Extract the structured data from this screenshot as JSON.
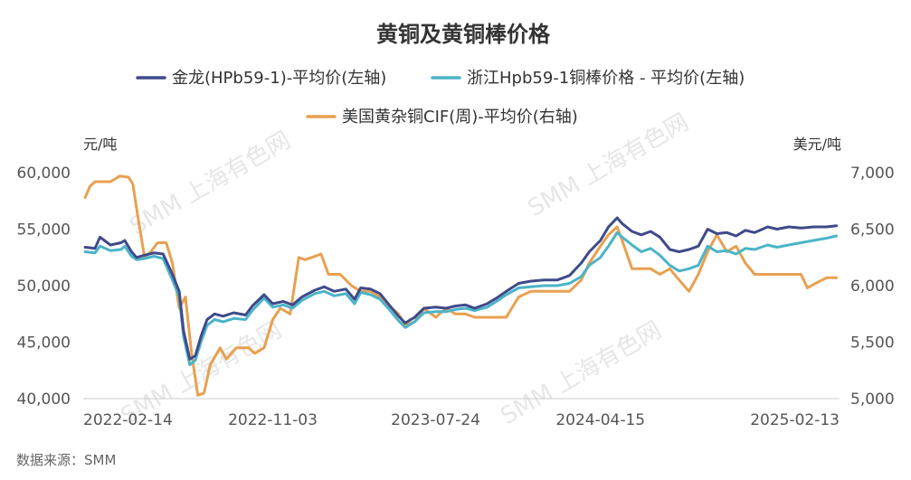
{
  "chart_data": {
    "type": "line",
    "title": "黄铜及黄铜棒价格",
    "left_unit": "元/吨",
    "right_unit": "美元/吨",
    "source": "数据来源：SMM",
    "watermark": "SMM 上海有色网",
    "x_ticks": [
      "2022-02-14",
      "2022-11-03",
      "2023-07-24",
      "2024-04-15",
      "2025-02-13"
    ],
    "x_range": [
      "2022-01-01",
      "2025-05-06"
    ],
    "y_left": {
      "range": [
        40000,
        60000
      ],
      "ticks": [
        "40,000",
        "45,000",
        "50,000",
        "55,000",
        "60,000"
      ]
    },
    "y_right": {
      "range": [
        5000,
        7000
      ],
      "ticks": [
        "5,000",
        "5,500",
        "6,000",
        "6,500",
        "7,000"
      ]
    },
    "series": [
      {
        "name": "金龙(HPb59-1)-平均价(左轴)",
        "axis": "left",
        "color": "#3f4a8a",
        "points": [
          [
            "2022-01-04",
            53400
          ],
          [
            "2022-01-20",
            53300
          ],
          [
            "2022-01-28",
            54300
          ],
          [
            "2022-02-14",
            53600
          ],
          [
            "2022-03-03",
            53800
          ],
          [
            "2022-03-09",
            54000
          ],
          [
            "2022-03-20",
            53000
          ],
          [
            "2022-03-28",
            52500
          ],
          [
            "2022-04-10",
            52700
          ],
          [
            "2022-04-25",
            52900
          ],
          [
            "2022-05-10",
            52800
          ],
          [
            "2022-05-25",
            51000
          ],
          [
            "2022-06-05",
            49500
          ],
          [
            "2022-06-12",
            46000
          ],
          [
            "2022-06-22",
            43500
          ],
          [
            "2022-07-01",
            43800
          ],
          [
            "2022-07-10",
            45500
          ],
          [
            "2022-07-20",
            47000
          ],
          [
            "2022-08-01",
            47500
          ],
          [
            "2022-08-15",
            47300
          ],
          [
            "2022-09-01",
            47600
          ],
          [
            "2022-09-20",
            47400
          ],
          [
            "2022-10-01",
            48200
          ],
          [
            "2022-10-20",
            49200
          ],
          [
            "2022-11-03",
            48400
          ],
          [
            "2022-11-20",
            48600
          ],
          [
            "2022-12-05",
            48300
          ],
          [
            "2022-12-20",
            49000
          ],
          [
            "2023-01-10",
            49600
          ],
          [
            "2023-01-25",
            49900
          ],
          [
            "2023-02-10",
            49500
          ],
          [
            "2023-03-01",
            49700
          ],
          [
            "2023-03-15",
            48800
          ],
          [
            "2023-03-25",
            49800
          ],
          [
            "2023-04-10",
            49700
          ],
          [
            "2023-04-25",
            49300
          ],
          [
            "2023-05-10",
            48300
          ],
          [
            "2023-05-25",
            47300
          ],
          [
            "2023-06-05",
            46700
          ],
          [
            "2023-06-20",
            47200
          ],
          [
            "2023-07-05",
            48000
          ],
          [
            "2023-07-24",
            48100
          ],
          [
            "2023-08-10",
            48000
          ],
          [
            "2023-08-25",
            48200
          ],
          [
            "2023-09-10",
            48300
          ],
          [
            "2023-09-25",
            48000
          ],
          [
            "2023-10-15",
            48400
          ],
          [
            "2023-10-30",
            48900
          ],
          [
            "2023-11-15",
            49500
          ],
          [
            "2023-12-05",
            50200
          ],
          [
            "2023-12-25",
            50400
          ],
          [
            "2024-01-15",
            50500
          ],
          [
            "2024-02-05",
            50500
          ],
          [
            "2024-02-25",
            50900
          ],
          [
            "2024-03-15",
            52000
          ],
          [
            "2024-03-28",
            53000
          ],
          [
            "2024-04-15",
            54000
          ],
          [
            "2024-04-28",
            55200
          ],
          [
            "2024-05-12",
            56000
          ],
          [
            "2024-05-20",
            55500
          ],
          [
            "2024-06-05",
            54800
          ],
          [
            "2024-06-20",
            54500
          ],
          [
            "2024-07-05",
            54800
          ],
          [
            "2024-07-20",
            54300
          ],
          [
            "2024-08-05",
            53200
          ],
          [
            "2024-08-20",
            53000
          ],
          [
            "2024-09-05",
            53200
          ],
          [
            "2024-09-20",
            53500
          ],
          [
            "2024-10-05",
            55000
          ],
          [
            "2024-10-20",
            54600
          ],
          [
            "2024-11-05",
            54700
          ],
          [
            "2024-11-20",
            54400
          ],
          [
            "2024-12-05",
            54900
          ],
          [
            "2024-12-20",
            54700
          ],
          [
            "2025-01-10",
            55200
          ],
          [
            "2025-01-25",
            55000
          ],
          [
            "2025-02-13",
            55200
          ],
          [
            "2025-03-05",
            55100
          ],
          [
            "2025-03-25",
            55200
          ],
          [
            "2025-04-15",
            55200
          ],
          [
            "2025-05-01",
            55300
          ]
        ]
      },
      {
        "name": "浙江Hpb59-1铜棒价格 - 平均价(左轴)",
        "axis": "left",
        "color": "#4bb4c8",
        "points": [
          [
            "2022-01-04",
            53000
          ],
          [
            "2022-01-20",
            52900
          ],
          [
            "2022-01-28",
            53500
          ],
          [
            "2022-02-14",
            53100
          ],
          [
            "2022-03-03",
            53200
          ],
          [
            "2022-03-09",
            53500
          ],
          [
            "2022-03-20",
            52600
          ],
          [
            "2022-03-28",
            52300
          ],
          [
            "2022-04-10",
            52400
          ],
          [
            "2022-04-25",
            52600
          ],
          [
            "2022-05-10",
            52400
          ],
          [
            "2022-05-25",
            50500
          ],
          [
            "2022-06-05",
            49000
          ],
          [
            "2022-06-12",
            45500
          ],
          [
            "2022-06-22",
            43000
          ],
          [
            "2022-07-01",
            43400
          ],
          [
            "2022-07-10",
            45000
          ],
          [
            "2022-07-20",
            46500
          ],
          [
            "2022-08-01",
            47000
          ],
          [
            "2022-08-15",
            46800
          ],
          [
            "2022-09-01",
            47100
          ],
          [
            "2022-09-20",
            47000
          ],
          [
            "2022-10-01",
            47800
          ],
          [
            "2022-10-20",
            48900
          ],
          [
            "2022-11-03",
            48100
          ],
          [
            "2022-11-20",
            48300
          ],
          [
            "2022-12-05",
            48000
          ],
          [
            "2022-12-20",
            48700
          ],
          [
            "2023-01-10",
            49300
          ],
          [
            "2023-01-25",
            49500
          ],
          [
            "2023-02-10",
            49100
          ],
          [
            "2023-03-01",
            49300
          ],
          [
            "2023-03-15",
            48400
          ],
          [
            "2023-03-25",
            49400
          ],
          [
            "2023-04-10",
            49200
          ],
          [
            "2023-04-25",
            48800
          ],
          [
            "2023-05-10",
            47900
          ],
          [
            "2023-05-25",
            46900
          ],
          [
            "2023-06-05",
            46300
          ],
          [
            "2023-06-20",
            46800
          ],
          [
            "2023-07-05",
            47600
          ],
          [
            "2023-07-24",
            47700
          ],
          [
            "2023-08-10",
            47700
          ],
          [
            "2023-08-25",
            47900
          ],
          [
            "2023-09-10",
            48000
          ],
          [
            "2023-09-25",
            47800
          ],
          [
            "2023-10-15",
            48100
          ],
          [
            "2023-10-30",
            48600
          ],
          [
            "2023-11-15",
            49200
          ],
          [
            "2023-12-05",
            49800
          ],
          [
            "2023-12-25",
            49900
          ],
          [
            "2024-01-15",
            50000
          ],
          [
            "2024-02-05",
            50000
          ],
          [
            "2024-02-25",
            50200
          ],
          [
            "2024-03-15",
            50800
          ],
          [
            "2024-03-28",
            51800
          ],
          [
            "2024-04-15",
            52500
          ],
          [
            "2024-04-28",
            53500
          ],
          [
            "2024-05-12",
            54700
          ],
          [
            "2024-05-20",
            54300
          ],
          [
            "2024-06-05",
            53600
          ],
          [
            "2024-06-20",
            53000
          ],
          [
            "2024-07-05",
            53300
          ],
          [
            "2024-07-20",
            52700
          ],
          [
            "2024-08-05",
            51800
          ],
          [
            "2024-08-20",
            51300
          ],
          [
            "2024-09-05",
            51500
          ],
          [
            "2024-09-20",
            51800
          ],
          [
            "2024-10-05",
            53500
          ],
          [
            "2024-10-20",
            53000
          ],
          [
            "2024-11-05",
            53100
          ],
          [
            "2024-11-20",
            52800
          ],
          [
            "2024-12-05",
            53300
          ],
          [
            "2024-12-20",
            53200
          ],
          [
            "2025-01-10",
            53600
          ],
          [
            "2025-01-25",
            53400
          ],
          [
            "2025-02-13",
            53600
          ],
          [
            "2025-03-05",
            53800
          ],
          [
            "2025-03-25",
            54000
          ],
          [
            "2025-04-15",
            54200
          ],
          [
            "2025-05-01",
            54400
          ]
        ]
      },
      {
        "name": "美国黄杂铜CIF(周)-平均价(右轴)",
        "axis": "right",
        "color": "#e8a050",
        "points": [
          [
            "2022-01-04",
            6780
          ],
          [
            "2022-01-12",
            6880
          ],
          [
            "2022-01-20",
            6920
          ],
          [
            "2022-02-14",
            6920
          ],
          [
            "2022-03-01",
            6970
          ],
          [
            "2022-03-15",
            6960
          ],
          [
            "2022-03-22",
            6900
          ],
          [
            "2022-04-01",
            6550
          ],
          [
            "2022-04-10",
            6250
          ],
          [
            "2022-04-20",
            6300
          ],
          [
            "2022-05-01",
            6380
          ],
          [
            "2022-05-15",
            6380
          ],
          [
            "2022-05-25",
            6200
          ],
          [
            "2022-06-05",
            5800
          ],
          [
            "2022-06-15",
            5900
          ],
          [
            "2022-06-25",
            5400
          ],
          [
            "2022-07-05",
            5030
          ],
          [
            "2022-07-15",
            5050
          ],
          [
            "2022-07-25",
            5300
          ],
          [
            "2022-08-10",
            5450
          ],
          [
            "2022-08-20",
            5350
          ],
          [
            "2022-09-05",
            5450
          ],
          [
            "2022-09-25",
            5450
          ],
          [
            "2022-10-05",
            5400
          ],
          [
            "2022-10-20",
            5450
          ],
          [
            "2022-11-03",
            5700
          ],
          [
            "2022-11-15",
            5800
          ],
          [
            "2022-12-01",
            5750
          ],
          [
            "2022-12-15",
            6250
          ],
          [
            "2022-12-25",
            6230
          ],
          [
            "2023-01-05",
            6250
          ],
          [
            "2023-01-20",
            6280
          ],
          [
            "2023-02-01",
            6100
          ],
          [
            "2023-02-20",
            6100
          ],
          [
            "2023-03-10",
            6000
          ],
          [
            "2023-03-25",
            5950
          ],
          [
            "2023-04-10",
            5950
          ],
          [
            "2023-04-25",
            5900
          ],
          [
            "2023-05-10",
            5820
          ],
          [
            "2023-05-25",
            5750
          ],
          [
            "2023-06-05",
            5650
          ],
          [
            "2023-06-20",
            5680
          ],
          [
            "2023-07-05",
            5800
          ],
          [
            "2023-07-24",
            5720
          ],
          [
            "2023-08-10",
            5800
          ],
          [
            "2023-08-25",
            5750
          ],
          [
            "2023-09-10",
            5750
          ],
          [
            "2023-09-25",
            5720
          ],
          [
            "2023-10-15",
            5720
          ],
          [
            "2023-10-30",
            5720
          ],
          [
            "2023-11-15",
            5720
          ],
          [
            "2023-12-05",
            5900
          ],
          [
            "2023-12-25",
            5950
          ],
          [
            "2024-01-15",
            5950
          ],
          [
            "2024-02-05",
            5950
          ],
          [
            "2024-02-25",
            5950
          ],
          [
            "2024-03-15",
            6050
          ],
          [
            "2024-03-28",
            6200
          ],
          [
            "2024-04-15",
            6350
          ],
          [
            "2024-04-28",
            6450
          ],
          [
            "2024-05-12",
            6520
          ],
          [
            "2024-05-20",
            6400
          ],
          [
            "2024-06-05",
            6150
          ],
          [
            "2024-06-20",
            6150
          ],
          [
            "2024-07-05",
            6150
          ],
          [
            "2024-07-20",
            6100
          ],
          [
            "2024-08-05",
            6150
          ],
          [
            "2024-08-20",
            6050
          ],
          [
            "2024-09-05",
            5950
          ],
          [
            "2024-09-20",
            6100
          ],
          [
            "2024-10-05",
            6300
          ],
          [
            "2024-10-20",
            6450
          ],
          [
            "2024-11-05",
            6300
          ],
          [
            "2024-11-20",
            6350
          ],
          [
            "2024-12-05",
            6200
          ],
          [
            "2024-12-20",
            6100
          ],
          [
            "2025-01-10",
            6100
          ],
          [
            "2025-01-25",
            6100
          ],
          [
            "2025-02-13",
            6100
          ],
          [
            "2025-03-05",
            6100
          ],
          [
            "2025-03-15",
            5980
          ],
          [
            "2025-03-28",
            6020
          ],
          [
            "2025-04-15",
            6070
          ],
          [
            "2025-05-01",
            6070
          ]
        ]
      }
    ]
  }
}
